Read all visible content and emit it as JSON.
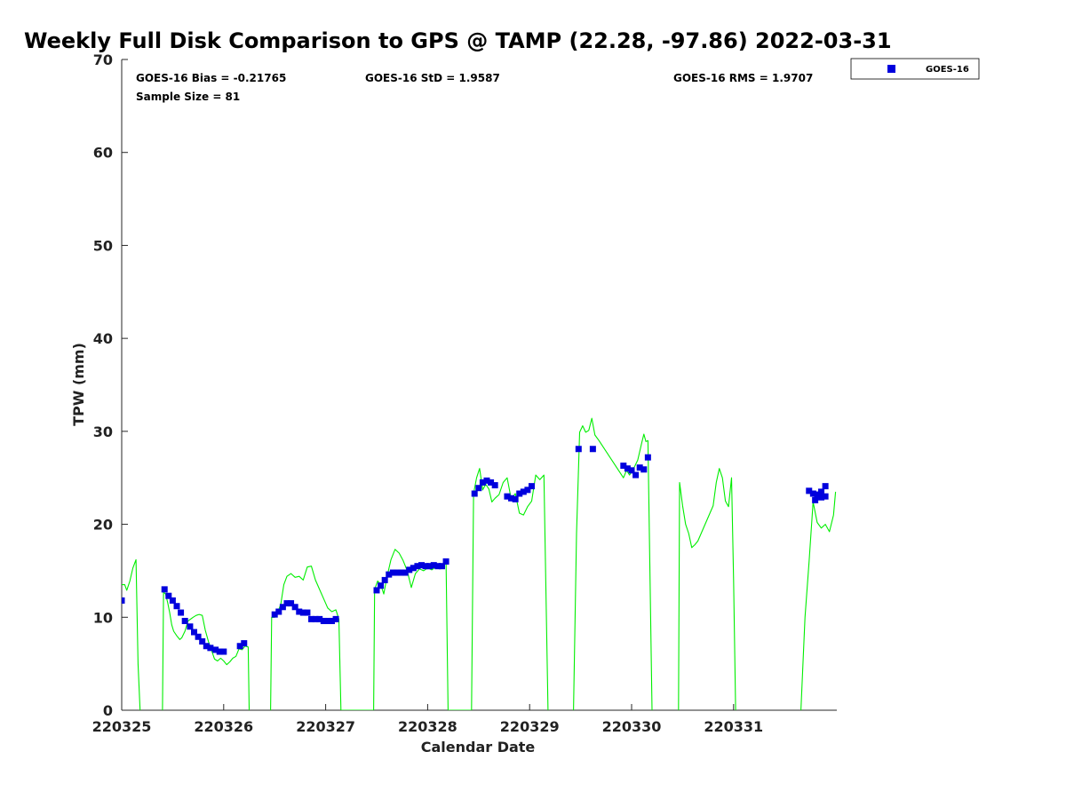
{
  "chart_data": {
    "type": "scatter",
    "title": "Weekly Full Disk Comparison to GPS @ TAMP (22.28, -97.86) 2022-03-31",
    "xlabel": "Calendar Date",
    "ylabel": "TPW (mm)",
    "ylim": [
      0,
      70
    ],
    "xlim": [
      220325,
      220332
    ],
    "x_ticks": [
      "220325",
      "220326",
      "220327",
      "220328",
      "220329",
      "220330",
      "220331"
    ],
    "y_ticks": [
      "0",
      "10",
      "20",
      "30",
      "40",
      "50",
      "60",
      "70"
    ],
    "grid": false,
    "legend_position": "top-right",
    "stats": {
      "bias": "GOES-16 Bias = -0.21765",
      "std": "GOES-16 StD = 1.9587",
      "rms": "GOES-16 RMS = 1.9707",
      "sample_size": "Sample Size = 81"
    },
    "series": [
      {
        "name": "GOES-16",
        "marker": "square",
        "color": "#0000dd",
        "x": [
          220325.0,
          220325.42,
          220325.46,
          220325.5,
          220325.54,
          220325.58,
          220325.62,
          220325.67,
          220325.71,
          220325.75,
          220325.79,
          220325.83,
          220325.87,
          220325.92,
          220325.96,
          220326.0,
          220326.04,
          220326.16,
          220326.2,
          220326.5,
          220326.54,
          220326.58,
          220326.62,
          220326.66,
          220326.7,
          220326.74,
          220326.78,
          220326.82,
          220326.86,
          220326.9,
          220326.94,
          220326.98,
          220327.02,
          220327.06,
          220327.1,
          220327.5,
          220327.54,
          220327.58,
          220327.62,
          220327.66,
          220327.7,
          220327.74,
          220327.78,
          220327.82,
          220327.86,
          220327.9,
          220327.94,
          220327.98,
          220328.02,
          220328.06,
          220328.1,
          220328.14,
          220328.18,
          220328.46,
          220328.5,
          220328.54,
          220328.58,
          220328.62,
          220328.66,
          220328.7,
          220328.78,
          220328.82,
          220328.86,
          220328.9,
          220328.94,
          220328.98,
          220329.02,
          220329.48,
          220329.62,
          220329.92,
          220329.96,
          220330.0,
          220330.04,
          220330.08,
          220330.12,
          220330.16,
          220331.74,
          220331.78,
          220331.82,
          220331.86,
          220331.9,
          220331.8,
          220331.86,
          220331.9
        ],
        "y": [
          11.8,
          13.0,
          12.3,
          11.8,
          11.2,
          10.5,
          9.6,
          9.0,
          8.4,
          7.9,
          7.4,
          6.9,
          6.7,
          6.5,
          6.3,
          6.3,
          null,
          6.9,
          7.2,
          10.3,
          10.6,
          11.1,
          11.5,
          11.5,
          11.1,
          10.6,
          10.5,
          10.5,
          9.8,
          9.8,
          9.8,
          9.6,
          9.6,
          9.6,
          9.8,
          12.9,
          13.4,
          14.0,
          14.6,
          14.8,
          14.8,
          14.8,
          14.8,
          15.1,
          15.3,
          15.5,
          15.6,
          15.5,
          15.5,
          15.6,
          15.5,
          15.5,
          16.0,
          23.3,
          23.9,
          24.5,
          24.7,
          24.5,
          24.2,
          null,
          23.0,
          22.8,
          22.7,
          23.3,
          23.5,
          23.7,
          24.1,
          28.1,
          28.1,
          26.3,
          26.0,
          25.8,
          25.3,
          26.1,
          25.9,
          27.2,
          23.6,
          23.3,
          23.2,
          22.9,
          23.0,
          22.6,
          23.5,
          24.1
        ]
      },
      {
        "name": "GPS",
        "line": true,
        "color": "#00ee00",
        "x": [
          220324.99,
          220325.03,
          220325.05,
          220325.08,
          220325.11,
          220325.14,
          220325.16,
          220325.18,
          220325.2,
          220325.4,
          220325.41,
          220325.43,
          220325.45,
          220325.47,
          220325.49,
          220325.51,
          220325.54,
          220325.57,
          220325.59,
          220325.62,
          220325.65,
          220325.7,
          220325.73,
          220325.76,
          220325.79,
          220325.82,
          220325.85,
          220325.88,
          220325.91,
          220325.94,
          220325.97,
          220326.0,
          220326.03,
          220326.06,
          220326.09,
          220326.12,
          220326.15,
          220326.18,
          220326.21,
          220326.24,
          220326.25,
          220326.27,
          220326.46,
          220326.47,
          220326.5,
          220326.53,
          220326.56,
          220326.59,
          220326.62,
          220326.66,
          220326.7,
          220326.74,
          220326.78,
          220326.82,
          220326.86,
          220326.9,
          220326.94,
          220326.98,
          220327.02,
          220327.06,
          220327.1,
          220327.13,
          220327.15,
          220327.47,
          220327.48,
          220327.51,
          220327.54,
          220327.57,
          220327.6,
          220327.64,
          220327.68,
          220327.72,
          220327.76,
          220327.8,
          220327.84,
          220327.88,
          220327.92,
          220327.96,
          220328.0,
          220328.04,
          220328.08,
          220328.12,
          220328.16,
          220328.18,
          220328.2,
          220328.43,
          220328.45,
          220328.48,
          220328.51,
          220328.54,
          220328.57,
          220328.6,
          220328.63,
          220328.66,
          220328.7,
          220328.74,
          220328.78,
          220328.82,
          220328.86,
          220328.9,
          220328.94,
          220328.98,
          220329.02,
          220329.06,
          220329.1,
          220329.14,
          220329.18,
          220329.2,
          220329.43,
          220329.46,
          220329.49,
          220329.52,
          220329.55,
          220329.58,
          220329.61,
          220329.64,
          220329.68,
          220329.92,
          220329.95,
          220329.98,
          220330.02,
          220330.06,
          220330.1,
          220330.12,
          220330.14,
          220330.16,
          220330.2,
          220330.21,
          220330.46,
          220330.47,
          220330.5,
          220330.53,
          220330.56,
          220330.59,
          220330.62,
          220330.65,
          220330.8,
          220330.83,
          220330.86,
          220330.89,
          220330.92,
          220330.95,
          220330.98,
          220331.0,
          220331.02,
          220331.06,
          220331.66,
          220331.7,
          220331.74,
          220331.78,
          220331.82,
          220331.86,
          220331.9,
          220331.94,
          220331.98,
          220332.0
        ],
        "y": [
          13.5,
          13.5,
          12.9,
          13.9,
          15.3,
          16.2,
          5.0,
          0,
          null,
          0,
          12.7,
          12.5,
          11.6,
          10.5,
          9.2,
          8.5,
          8.0,
          7.6,
          7.8,
          8.5,
          9.6,
          10.0,
          10.2,
          10.3,
          10.2,
          8.6,
          7.4,
          6.5,
          5.5,
          5.3,
          5.6,
          5.3,
          4.9,
          5.2,
          5.6,
          5.8,
          6.6,
          6.5,
          6.9,
          6.8,
          0,
          null,
          0,
          10.0,
          10.0,
          10.5,
          11.4,
          13.5,
          14.4,
          14.7,
          14.3,
          14.4,
          14.0,
          15.4,
          15.5,
          14.0,
          13.0,
          12.0,
          11.0,
          10.6,
          10.8,
          9.8,
          0,
          0,
          13.0,
          13.9,
          13.5,
          12.5,
          14.3,
          16.2,
          17.3,
          16.9,
          16.1,
          15.0,
          13.2,
          14.7,
          15.2,
          15.0,
          15.3,
          15.1,
          15.4,
          15.3,
          15.6,
          16.2,
          0,
          0,
          23.3,
          25.0,
          26.0,
          23.7,
          24.3,
          23.8,
          22.4,
          22.8,
          23.2,
          24.5,
          25.0,
          22.7,
          23.3,
          21.2,
          21.0,
          21.9,
          22.5,
          25.3,
          24.8,
          25.3,
          0,
          null,
          0,
          19.0,
          29.9,
          30.6,
          29.9,
          30.1,
          31.4,
          29.6,
          29.0,
          25.0,
          25.8,
          25.3,
          26.0,
          26.9,
          28.8,
          29.7,
          28.9,
          29.0,
          0,
          null,
          0,
          24.5,
          22.0,
          20.0,
          19.0,
          17.5,
          17.8,
          18.2,
          22.0,
          24.5,
          26.0,
          25.0,
          22.5,
          21.9,
          25.0,
          14.0,
          0,
          null,
          0,
          10.0,
          16.0,
          22.4,
          20.2,
          19.6,
          20.0,
          19.2,
          21.0,
          23.5
        ]
      }
    ]
  },
  "legend": {
    "label": "GOES-16",
    "marker_color": "#0000dd"
  }
}
